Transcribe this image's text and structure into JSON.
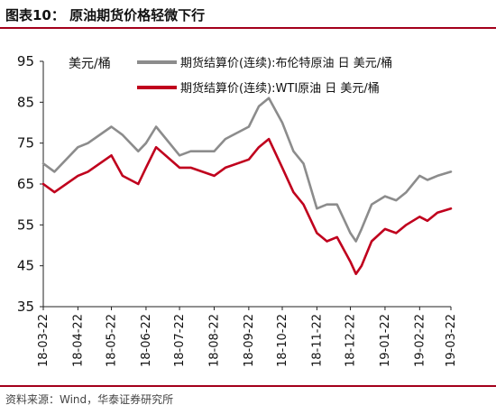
{
  "figure": {
    "title": "图表10：   原油期货价格轻微下行",
    "source": "资料来源：Wind，华泰证券研究所"
  },
  "chart_data": {
    "type": "line",
    "y_unit_label": "美元/桶",
    "ylim": [
      35,
      95
    ],
    "yticks": [
      35,
      45,
      55,
      65,
      75,
      85,
      95
    ],
    "x_tick_labels": [
      "18-03-22",
      "18-04-22",
      "18-05-22",
      "18-06-22",
      "18-07-22",
      "18-08-22",
      "18-09-22",
      "18-10-22",
      "18-11-22",
      "18-12-22",
      "19-01-22",
      "19-02-22",
      "19-03-22"
    ],
    "grid": false,
    "legend_position": "top",
    "x": [
      "18-03-22",
      "18-04-01",
      "18-04-22",
      "18-05-01",
      "18-05-22",
      "18-06-01",
      "18-06-15",
      "18-06-22",
      "18-07-01",
      "18-07-22",
      "18-08-01",
      "18-08-22",
      "18-09-01",
      "18-09-22",
      "18-10-01",
      "18-10-10",
      "18-10-22",
      "18-11-01",
      "18-11-10",
      "18-11-22",
      "18-12-01",
      "18-12-10",
      "18-12-22",
      "18-12-27",
      "19-01-01",
      "19-01-10",
      "19-01-22",
      "19-02-01",
      "19-02-10",
      "19-02-22",
      "19-03-01",
      "19-03-10",
      "19-03-22"
    ],
    "series": [
      {
        "name": "期货结算价(连续):布伦特原油 日 美元/桶",
        "color": "#8c8c8c",
        "values": [
          70,
          68,
          74,
          75,
          79,
          77,
          73,
          75,
          79,
          72,
          73,
          73,
          76,
          79,
          84,
          86,
          80,
          73,
          70,
          59,
          60,
          60,
          53,
          51,
          54,
          60,
          62,
          61,
          63,
          67,
          66,
          67,
          68
        ]
      },
      {
        "name": "期货结算价(连续):WTI原油 日 美元/桶",
        "color": "#c0001d",
        "values": [
          65,
          63,
          67,
          68,
          72,
          67,
          65,
          69,
          74,
          69,
          69,
          67,
          69,
          71,
          74,
          76,
          69,
          63,
          60,
          53,
          51,
          52,
          46,
          43,
          45,
          51,
          54,
          53,
          55,
          57,
          56,
          58,
          59
        ]
      }
    ]
  }
}
